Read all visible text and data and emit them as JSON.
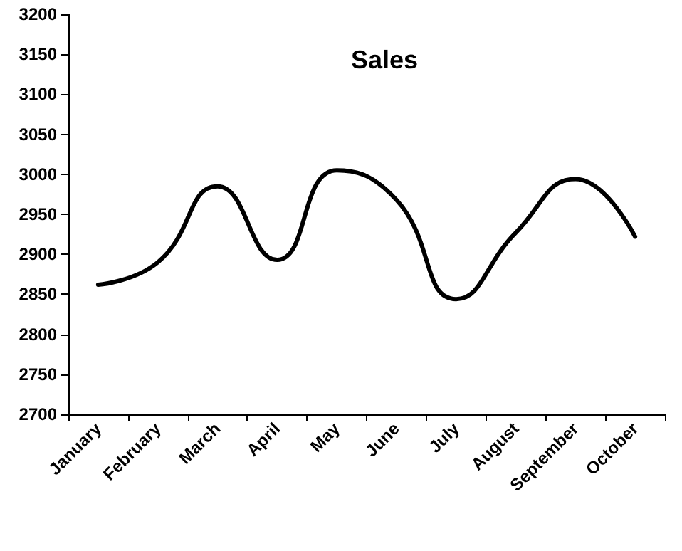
{
  "chart_data": {
    "type": "line",
    "title": "Sales",
    "categories": [
      "January",
      "February",
      "March",
      "April",
      "May",
      "June",
      "July",
      "August",
      "September",
      "October"
    ],
    "series": [
      {
        "color": "#000000",
        "values": [
          2862,
          2890,
          2985,
          2893,
          3005,
          2968,
          2844,
          2927,
          2994,
          2922
        ]
      }
    ],
    "ylim": [
      2700,
      3200
    ],
    "yticks": [
      2700,
      2750,
      2800,
      2850,
      2900,
      2950,
      3000,
      3050,
      3100,
      3150,
      3200
    ],
    "grid": false,
    "marker": "none",
    "line_style": "solid"
  }
}
